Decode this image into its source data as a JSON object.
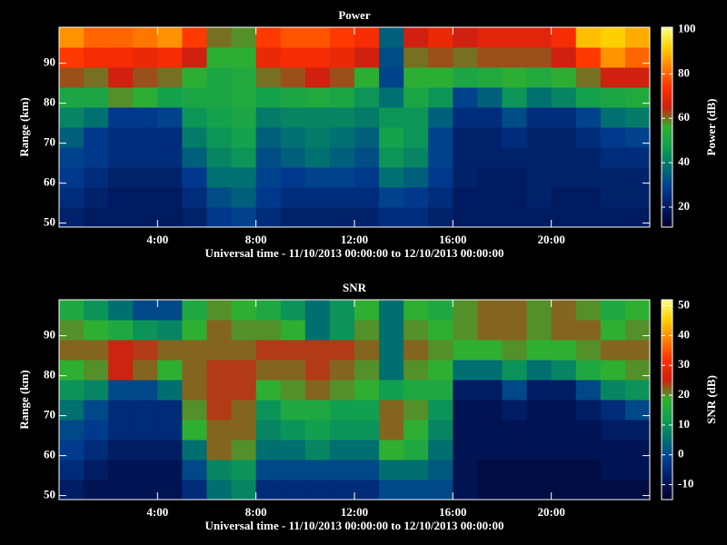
{
  "chart_data": [
    {
      "type": "heatmap",
      "title": "Power",
      "xlabel": "Universal time - 11/10/2013 00:00:00 to 12/10/2013 00:00:00",
      "ylabel": "Range (km)",
      "colorbar_label": "Power (dB)",
      "xbins": [
        0,
        1,
        2,
        3,
        4,
        5,
        6,
        7,
        8,
        9,
        10,
        11,
        12,
        13,
        14,
        15,
        16,
        17,
        18,
        19,
        20,
        21,
        22,
        23,
        24
      ],
      "ybins": [
        49,
        54,
        59,
        64,
        69,
        74,
        79,
        84,
        89,
        94,
        99
      ],
      "xlim": [
        0,
        24
      ],
      "ylim": [
        49,
        99
      ],
      "zlim": [
        11,
        101
      ],
      "xticks": [
        {
          "value": 4,
          "label": "4:00"
        },
        {
          "value": 8,
          "label": "8:00"
        },
        {
          "value": 12,
          "label": "12:00"
        },
        {
          "value": 16,
          "label": "16:00"
        },
        {
          "value": 20,
          "label": "20:00"
        }
      ],
      "yticks": [
        50,
        60,
        70,
        80,
        90
      ],
      "zticks": [
        20,
        40,
        60,
        80,
        100
      ],
      "colormap": [
        "#00002a",
        "#001a60",
        "#003c90",
        "#007070",
        "#10a050",
        "#30b030",
        "#d02010",
        "#ff3000",
        "#ff8000",
        "#ffd000",
        "#ffff80"
      ],
      "values": [
        [
          22,
          20,
          20,
          20,
          20,
          22,
          28,
          30,
          25,
          22,
          22,
          22,
          22,
          25,
          25,
          22,
          20,
          20,
          20,
          20,
          20,
          20,
          20,
          20
        ],
        [
          25,
          22,
          20,
          20,
          20,
          25,
          32,
          35,
          28,
          25,
          25,
          25,
          25,
          30,
          28,
          25,
          20,
          20,
          20,
          22,
          20,
          20,
          22,
          22
        ],
        [
          28,
          25,
          22,
          22,
          22,
          28,
          38,
          38,
          30,
          28,
          30,
          30,
          28,
          38,
          35,
          28,
          22,
          20,
          20,
          22,
          22,
          22,
          22,
          22
        ],
        [
          30,
          28,
          25,
          25,
          25,
          35,
          42,
          45,
          32,
          35,
          38,
          35,
          32,
          45,
          42,
          30,
          22,
          22,
          22,
          22,
          22,
          22,
          25,
          25
        ],
        [
          35,
          28,
          25,
          25,
          25,
          40,
          45,
          48,
          35,
          38,
          40,
          38,
          35,
          48,
          45,
          30,
          22,
          22,
          25,
          22,
          22,
          25,
          28,
          30
        ],
        [
          42,
          38,
          28,
          28,
          30,
          45,
          48,
          50,
          40,
          42,
          42,
          42,
          40,
          45,
          45,
          35,
          25,
          25,
          32,
          25,
          25,
          30,
          38,
          40
        ],
        [
          50,
          50,
          58,
          55,
          48,
          50,
          50,
          52,
          48,
          50,
          52,
          50,
          45,
          38,
          50,
          45,
          30,
          35,
          45,
          38,
          42,
          48,
          50,
          52
        ],
        [
          62,
          60,
          65,
          62,
          60,
          55,
          50,
          52,
          60,
          62,
          65,
          62,
          55,
          30,
          55,
          55,
          50,
          52,
          55,
          52,
          55,
          60,
          65,
          65
        ],
        [
          75,
          72,
          72,
          70,
          72,
          65,
          55,
          55,
          70,
          72,
          72,
          70,
          65,
          32,
          60,
          62,
          60,
          62,
          62,
          62,
          65,
          75,
          85,
          80
        ],
        [
          85,
          80,
          80,
          82,
          85,
          75,
          60,
          58,
          75,
          78,
          78,
          75,
          72,
          35,
          65,
          70,
          65,
          68,
          68,
          68,
          72,
          90,
          92,
          88
        ]
      ]
    },
    {
      "type": "heatmap",
      "title": "SNR",
      "xlabel": "Universal time - 11/10/2013 00:00:00 to 12/10/2013 00:00:00",
      "ylabel": "Range (km)",
      "colorbar_label": "SNR (dB)",
      "xbins": [
        0,
        1,
        2,
        3,
        4,
        5,
        6,
        7,
        8,
        9,
        10,
        11,
        12,
        13,
        14,
        15,
        16,
        17,
        18,
        19,
        20,
        21,
        22,
        23,
        24
      ],
      "ybins": [
        49,
        54,
        59,
        64,
        69,
        74,
        79,
        84,
        89,
        94,
        99
      ],
      "xlim": [
        0,
        24
      ],
      "ylim": [
        49,
        99
      ],
      "zlim": [
        -15,
        52
      ],
      "xticks": [
        {
          "value": 4,
          "label": "4:00"
        },
        {
          "value": 8,
          "label": "8:00"
        },
        {
          "value": 12,
          "label": "12:00"
        },
        {
          "value": 16,
          "label": "16:00"
        },
        {
          "value": 20,
          "label": "20:00"
        }
      ],
      "yticks": [
        50,
        60,
        70,
        80,
        90
      ],
      "zticks": [
        -10,
        0,
        10,
        20,
        30,
        40,
        50
      ],
      "colormap": [
        "#00002a",
        "#001a60",
        "#003c90",
        "#007070",
        "#10a050",
        "#30b030",
        "#d02010",
        "#ff3000",
        "#ff8000",
        "#ffd000",
        "#ffff80"
      ],
      "values": [
        [
          -8,
          -10,
          -10,
          -10,
          -10,
          -5,
          5,
          8,
          -5,
          -5,
          -5,
          -5,
          -5,
          0,
          0,
          0,
          -10,
          -12,
          -12,
          -12,
          -12,
          -12,
          -12,
          -12
        ],
        [
          -5,
          -8,
          -10,
          -10,
          -10,
          0,
          8,
          10,
          0,
          0,
          0,
          0,
          0,
          5,
          5,
          2,
          -10,
          -12,
          -12,
          -12,
          -12,
          -12,
          -10,
          -10
        ],
        [
          -2,
          -5,
          -8,
          -8,
          -8,
          5,
          22,
          20,
          5,
          5,
          8,
          5,
          5,
          18,
          15,
          5,
          -10,
          -10,
          -10,
          -10,
          -10,
          -10,
          -10,
          -10
        ],
        [
          0,
          -2,
          -5,
          -5,
          -5,
          18,
          22,
          22,
          8,
          10,
          12,
          10,
          10,
          22,
          18,
          8,
          -10,
          -10,
          -10,
          -10,
          -10,
          -10,
          -8,
          -8
        ],
        [
          5,
          0,
          -5,
          -5,
          -5,
          20,
          24,
          22,
          10,
          15,
          15,
          12,
          12,
          22,
          20,
          10,
          -10,
          -10,
          -8,
          -10,
          -10,
          -8,
          -5,
          0
        ],
        [
          10,
          8,
          0,
          0,
          5,
          22,
          24,
          24,
          18,
          20,
          22,
          20,
          18,
          12,
          15,
          15,
          -8,
          -8,
          0,
          -8,
          -8,
          0,
          8,
          10
        ],
        [
          18,
          20,
          25,
          22,
          18,
          22,
          24,
          24,
          22,
          22,
          24,
          22,
          20,
          5,
          20,
          18,
          5,
          5,
          10,
          5,
          8,
          15,
          18,
          20
        ],
        [
          22,
          22,
          25,
          24,
          22,
          22,
          22,
          22,
          24,
          24,
          24,
          24,
          22,
          5,
          22,
          20,
          18,
          18,
          20,
          18,
          18,
          20,
          22,
          22
        ],
        [
          20,
          18,
          15,
          10,
          8,
          18,
          22,
          20,
          20,
          18,
          5,
          10,
          20,
          5,
          20,
          18,
          20,
          22,
          22,
          20,
          22,
          22,
          18,
          20
        ],
        [
          15,
          10,
          5,
          0,
          0,
          15,
          20,
          18,
          15,
          10,
          5,
          10,
          18,
          5,
          18,
          15,
          20,
          22,
          22,
          20,
          22,
          20,
          15,
          18
        ]
      ]
    }
  ]
}
